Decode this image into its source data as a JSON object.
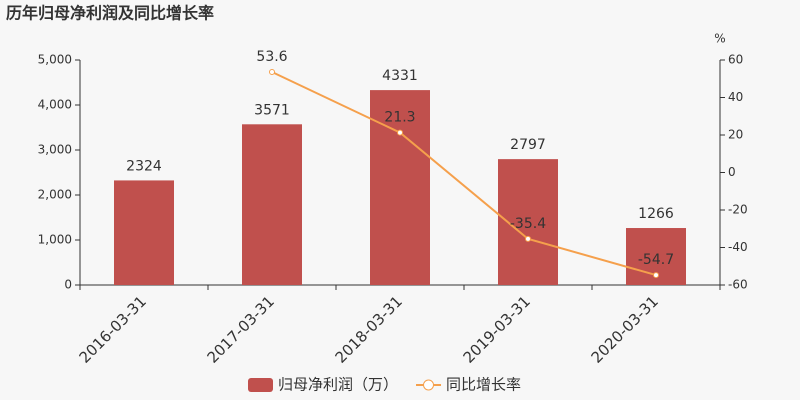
{
  "chart_data": {
    "type": "combo",
    "title": "历年归母净利润及同比增长率",
    "categories": [
      "2016-03-31",
      "2017-03-31",
      "2018-03-31",
      "2019-03-31",
      "2020-03-31"
    ],
    "series": [
      {
        "name": "归母净利润（万）",
        "type": "bar",
        "color": "#c0504d",
        "values": [
          2324,
          3571,
          4331,
          2797,
          1266
        ]
      },
      {
        "name": "同比增长率",
        "type": "line",
        "axis": "y2",
        "color": "#f5a04c",
        "values": [
          null,
          53.6,
          21.3,
          -35.4,
          -54.7
        ]
      }
    ],
    "ylim": [
      0,
      5000
    ],
    "yticks": [
      0,
      {
        "value": 1000,
        "label": "1,000"
      },
      {
        "value": 2000,
        "label": "2,000"
      },
      {
        "value": 3000,
        "label": "3,000"
      },
      {
        "value": 4000,
        "label": "4,000"
      },
      {
        "value": 5000,
        "label": "5,000"
      }
    ],
    "y2label": "%",
    "y2lim": [
      -60,
      60
    ],
    "y2ticks": [
      -60,
      -40,
      -20,
      0,
      20,
      40,
      60
    ],
    "grid": false
  }
}
